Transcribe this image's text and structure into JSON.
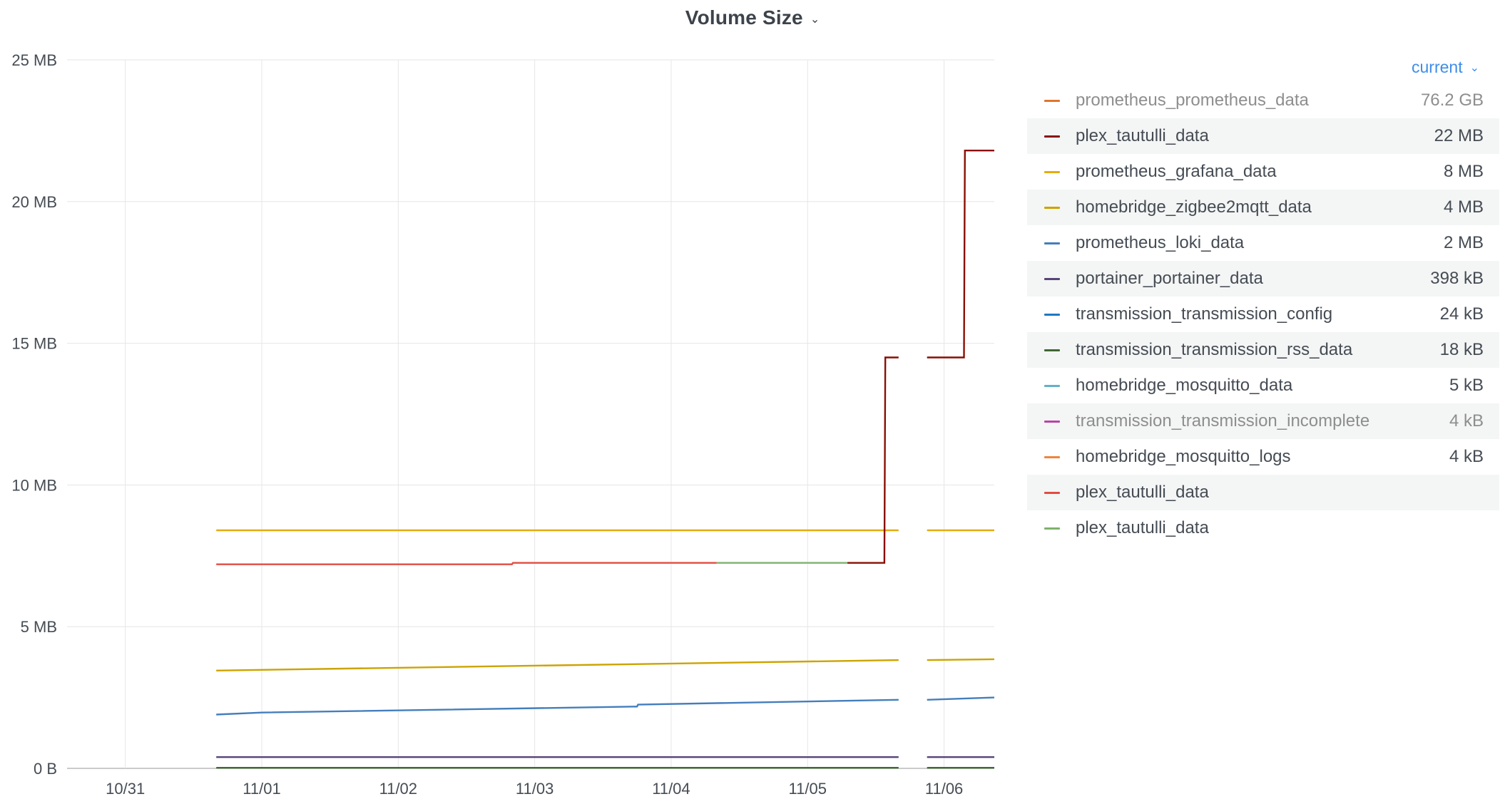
{
  "panel": {
    "title": "Volume Size",
    "legend_sort_label": "current"
  },
  "legend": [
    {
      "name": "prometheus_prometheus_data",
      "value": "76.2 GB",
      "color": "#e0752d",
      "muted": true
    },
    {
      "name": "plex_tautulli_data",
      "value": "22 MB",
      "color": "#890f02",
      "muted": false
    },
    {
      "name": "prometheus_grafana_data",
      "value": "8 MB",
      "color": "#e5ac0e",
      "muted": false
    },
    {
      "name": "homebridge_zigbee2mqtt_data",
      "value": "4 MB",
      "color": "#cca300",
      "muted": false
    },
    {
      "name": "prometheus_loki_data",
      "value": "2 MB",
      "color": "#447ebc",
      "muted": false
    },
    {
      "name": "portainer_portainer_data",
      "value": "398 kB",
      "color": "#584477",
      "muted": false
    },
    {
      "name": "transmission_transmission_config",
      "value": "24 kB",
      "color": "#1f78c1",
      "muted": false
    },
    {
      "name": "transmission_transmission_rss_data",
      "value": "18 kB",
      "color": "#3f6833",
      "muted": false
    },
    {
      "name": "homebridge_mosquitto_data",
      "value": "5 kB",
      "color": "#64b0c8",
      "muted": false
    },
    {
      "name": "transmission_transmission_incomplete",
      "value": "4 kB",
      "color": "#ba43a9",
      "muted": true
    },
    {
      "name": "homebridge_mosquitto_logs",
      "value": "4 kB",
      "color": "#ef843c",
      "muted": false
    },
    {
      "name": "plex_tautulli_data",
      "value": "",
      "color": "#e24d42",
      "muted": false
    },
    {
      "name": "plex_tautulli_data",
      "value": "",
      "color": "#7eb26d",
      "muted": false
    }
  ],
  "chart_data": {
    "type": "line",
    "title": "Volume Size",
    "xlabel": "",
    "ylabel": "",
    "y_unit": "MB",
    "ylim": [
      0,
      25
    ],
    "yticks": [
      {
        "value": 0,
        "label": "0 B"
      },
      {
        "value": 5,
        "label": "5 MB"
      },
      {
        "value": 10,
        "label": "10 MB"
      },
      {
        "value": 15,
        "label": "15 MB"
      },
      {
        "value": 20,
        "label": "20 MB"
      },
      {
        "value": 25,
        "label": "25 MB"
      }
    ],
    "xticks": [
      {
        "value": "2021-10-31T00:00",
        "label": "10/31"
      },
      {
        "value": "2021-11-01T00:00",
        "label": "11/01"
      },
      {
        "value": "2021-11-02T00:00",
        "label": "11/02"
      },
      {
        "value": "2021-11-03T00:00",
        "label": "11/03"
      },
      {
        "value": "2021-11-04T00:00",
        "label": "11/04"
      },
      {
        "value": "2021-11-05T00:00",
        "label": "11/05"
      },
      {
        "value": "2021-11-06T00:00",
        "label": "11/06"
      }
    ],
    "xlim": [
      "2030-10-30T13:45",
      "2021-11-06T08:50"
    ],
    "grid": true,
    "legend_position": "right",
    "series": [
      {
        "name": "prometheus_grafana_data",
        "color": "#e5ac0e",
        "segments": [
          [
            [
              "2021-10-31T16:00",
              8.4
            ],
            [
              "2021-11-05T16:00",
              8.4
            ]
          ],
          [
            [
              "2021-11-05T21:00",
              8.4
            ],
            [
              "2021-11-06T08:50",
              8.4
            ]
          ]
        ]
      },
      {
        "name": "plex_tautulli_data",
        "color": "#e24d42",
        "segments": [
          [
            [
              "2021-10-31T16:00",
              7.2
            ],
            [
              "2021-11-02T20:00",
              7.2
            ],
            [
              "2021-11-02T20:10",
              7.25
            ],
            [
              "2021-11-04T08:00",
              7.25
            ]
          ]
        ]
      },
      {
        "name": "plex_tautulli_data",
        "color": "#7eb26d",
        "segments": [
          [
            [
              "2021-11-04T08:00",
              7.25
            ],
            [
              "2021-11-05T07:00",
              7.25
            ]
          ]
        ]
      },
      {
        "name": "plex_tautulli_data",
        "color": "#890f02",
        "segments": [
          [
            [
              "2021-11-05T07:00",
              7.25
            ],
            [
              "2021-11-05T13:30",
              7.25
            ],
            [
              "2021-11-05T13:40",
              14.5
            ],
            [
              "2021-11-05T16:00",
              14.5
            ]
          ],
          [
            [
              "2021-11-05T21:00",
              14.5
            ],
            [
              "2021-11-06T03:30",
              14.5
            ],
            [
              "2021-11-06T03:40",
              21.8
            ],
            [
              "2021-11-06T08:50",
              21.8
            ]
          ]
        ]
      },
      {
        "name": "homebridge_zigbee2mqtt_data",
        "color": "#cca300",
        "segments": [
          [
            [
              "2021-10-31T16:00",
              3.45
            ],
            [
              "2021-11-05T16:00",
              3.82
            ]
          ],
          [
            [
              "2021-11-05T21:00",
              3.82
            ],
            [
              "2021-11-06T08:50",
              3.85
            ]
          ]
        ]
      },
      {
        "name": "prometheus_loki_data",
        "color": "#447ebc",
        "segments": [
          [
            [
              "2021-10-31T16:00",
              1.9
            ],
            [
              "2021-11-01T00:00",
              1.97
            ],
            [
              "2021-11-03T18:00",
              2.18
            ],
            [
              "2021-11-03T18:10",
              2.25
            ],
            [
              "2021-11-05T16:00",
              2.42
            ]
          ],
          [
            [
              "2021-11-05T21:00",
              2.42
            ],
            [
              "2021-11-06T08:50",
              2.5
            ]
          ]
        ]
      },
      {
        "name": "portainer_portainer_data",
        "color": "#584477",
        "segments": [
          [
            [
              "2021-10-31T16:00",
              0.398
            ],
            [
              "2021-11-05T16:00",
              0.398
            ]
          ],
          [
            [
              "2021-11-05T21:00",
              0.398
            ],
            [
              "2021-11-06T08:50",
              0.398
            ]
          ]
        ]
      },
      {
        "name": "transmission_transmission_rss_data",
        "color": "#3f6833",
        "segments": [
          [
            [
              "2021-10-31T16:00",
              0.02
            ],
            [
              "2021-11-05T16:00",
              0.02
            ]
          ],
          [
            [
              "2021-11-05T21:00",
              0.02
            ],
            [
              "2021-11-06T08:50",
              0.02
            ]
          ]
        ]
      }
    ]
  }
}
